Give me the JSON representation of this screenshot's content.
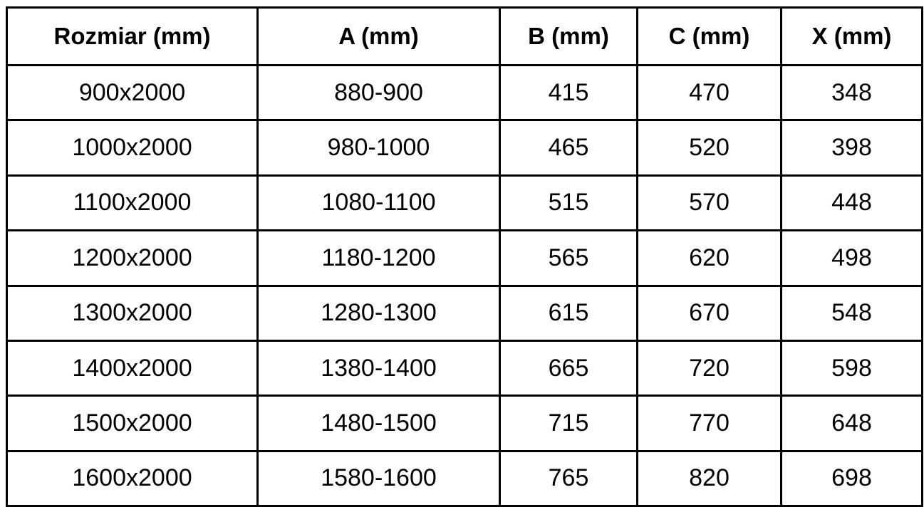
{
  "table": {
    "columns": [
      {
        "label": "Rozmiar (mm)"
      },
      {
        "label": "A (mm)"
      },
      {
        "label": "B (mm)"
      },
      {
        "label": "C (mm)"
      },
      {
        "label": "X (mm)"
      }
    ],
    "rows": [
      [
        "900x2000",
        "880-900",
        "415",
        "470",
        "348"
      ],
      [
        "1000x2000",
        "980-1000",
        "465",
        "520",
        "398"
      ],
      [
        "1100x2000",
        "1080-1100",
        "515",
        "570",
        "448"
      ],
      [
        "1200x2000",
        "1180-1200",
        "565",
        "620",
        "498"
      ],
      [
        "1300x2000",
        "1280-1300",
        "615",
        "670",
        "548"
      ],
      [
        "1400x2000",
        "1380-1400",
        "665",
        "720",
        "598"
      ],
      [
        "1500x2000",
        "1480-1500",
        "715",
        "770",
        "648"
      ],
      [
        "1600x2000",
        "1580-1600",
        "765",
        "820",
        "698"
      ]
    ]
  },
  "chart_data": {
    "type": "table",
    "title": "",
    "columns": [
      "Rozmiar (mm)",
      "A (mm)",
      "B (mm)",
      "C (mm)",
      "X (mm)"
    ],
    "rows": [
      [
        "900x2000",
        "880-900",
        415,
        470,
        348
      ],
      [
        "1000x2000",
        "980-1000",
        465,
        520,
        398
      ],
      [
        "1100x2000",
        "1080-1100",
        515,
        570,
        448
      ],
      [
        "1200x2000",
        "1180-1200",
        565,
        620,
        498
      ],
      [
        "1300x2000",
        "1280-1300",
        615,
        670,
        548
      ],
      [
        "1400x2000",
        "1380-1400",
        665,
        720,
        598
      ],
      [
        "1500x2000",
        "1480-1500",
        715,
        770,
        648
      ],
      [
        "1600x2000",
        "1580-1600",
        765,
        820,
        698
      ]
    ]
  },
  "colors": {
    "border": "#000000",
    "background": "#ffffff",
    "text": "#000000"
  }
}
